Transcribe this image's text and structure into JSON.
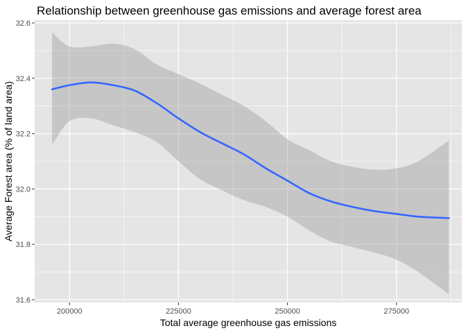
{
  "chart_data": {
    "type": "line",
    "title": "Relationship between greenhouse gas emissions and average forest area",
    "xlabel": "Total average greenhouse gas emissions",
    "ylabel": "Average Forest area (% of land area)",
    "xlim": [
      192000,
      290000
    ],
    "ylim": [
      31.59,
      32.61
    ],
    "x_ticks": [
      200000,
      225000,
      250000,
      275000
    ],
    "x_tick_labels": [
      "200000",
      "225000",
      "250000",
      "275000"
    ],
    "y_ticks": [
      31.6,
      31.8,
      32.0,
      32.2,
      32.4,
      32.6
    ],
    "y_tick_labels": [
      "31.6",
      "31.8",
      "32.0",
      "32.2",
      "32.4",
      "32.6"
    ],
    "grid": true,
    "legend": "none",
    "series": [
      {
        "x": [
          196000,
          200000,
          205000,
          210000,
          215000,
          220000,
          225000,
          230000,
          235000,
          240000,
          245000,
          250000,
          255000,
          260000,
          265000,
          270000,
          275000,
          280000,
          287000
        ],
        "values": [
          32.36,
          32.375,
          32.385,
          32.375,
          32.355,
          32.31,
          32.255,
          32.205,
          32.165,
          32.125,
          32.075,
          32.03,
          31.985,
          31.955,
          31.935,
          31.92,
          31.91,
          31.9,
          31.895
        ],
        "ci_low": [
          32.16,
          32.245,
          32.255,
          32.23,
          32.205,
          32.17,
          32.1,
          32.035,
          31.995,
          31.96,
          31.935,
          31.9,
          31.85,
          31.81,
          31.79,
          31.77,
          31.745,
          31.7,
          31.62
        ],
        "ci_high": [
          32.565,
          32.515,
          32.515,
          32.525,
          32.505,
          32.45,
          32.415,
          32.38,
          32.34,
          32.3,
          32.245,
          32.18,
          32.14,
          32.1,
          32.08,
          32.07,
          32.075,
          32.1,
          32.175
        ]
      }
    ]
  },
  "colors": {
    "panel_background": "#E5E5E5",
    "grid_major": "#FFFFFF",
    "line": "#3366FF",
    "ribbon": "#999999"
  }
}
